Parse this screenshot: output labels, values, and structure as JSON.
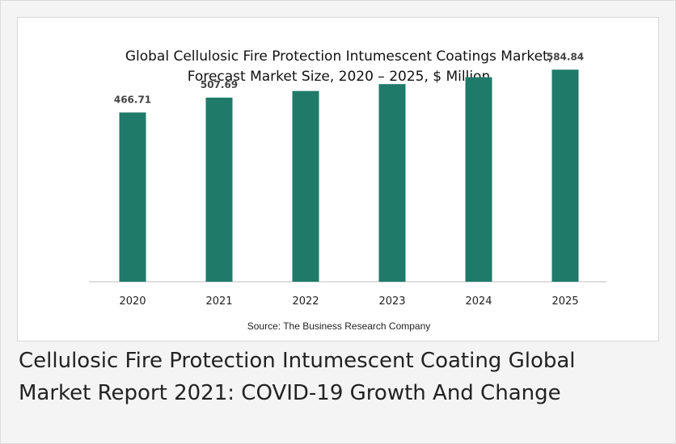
{
  "caption": {
    "line1": "Cellulosic Fire Protection Intumescent Coating Global",
    "line2": "Market Report 2021: COVID-19 Growth And Change"
  },
  "source": "Source: The Business Research Company",
  "colors": {
    "bar": "#1f7a6a",
    "axis": "#bfbfbf"
  },
  "chart_data": {
    "type": "bar",
    "title_line1": "Global Cellulosic Fire Protection Intumescent Coatings Market,",
    "title_line2": "Forecast Market Size, 2020 – 2025, $ Million",
    "categories": [
      "2020",
      "2021",
      "2022",
      "2023",
      "2024",
      "2025"
    ],
    "values": [
      466.71,
      507.69,
      526,
      545,
      564,
      584.84
    ],
    "data_labels": [
      "466.71",
      "507.69",
      "",
      "",
      "",
      "584.84"
    ],
    "ylim": [
      0,
      650
    ],
    "grid": false,
    "legend": "none"
  }
}
